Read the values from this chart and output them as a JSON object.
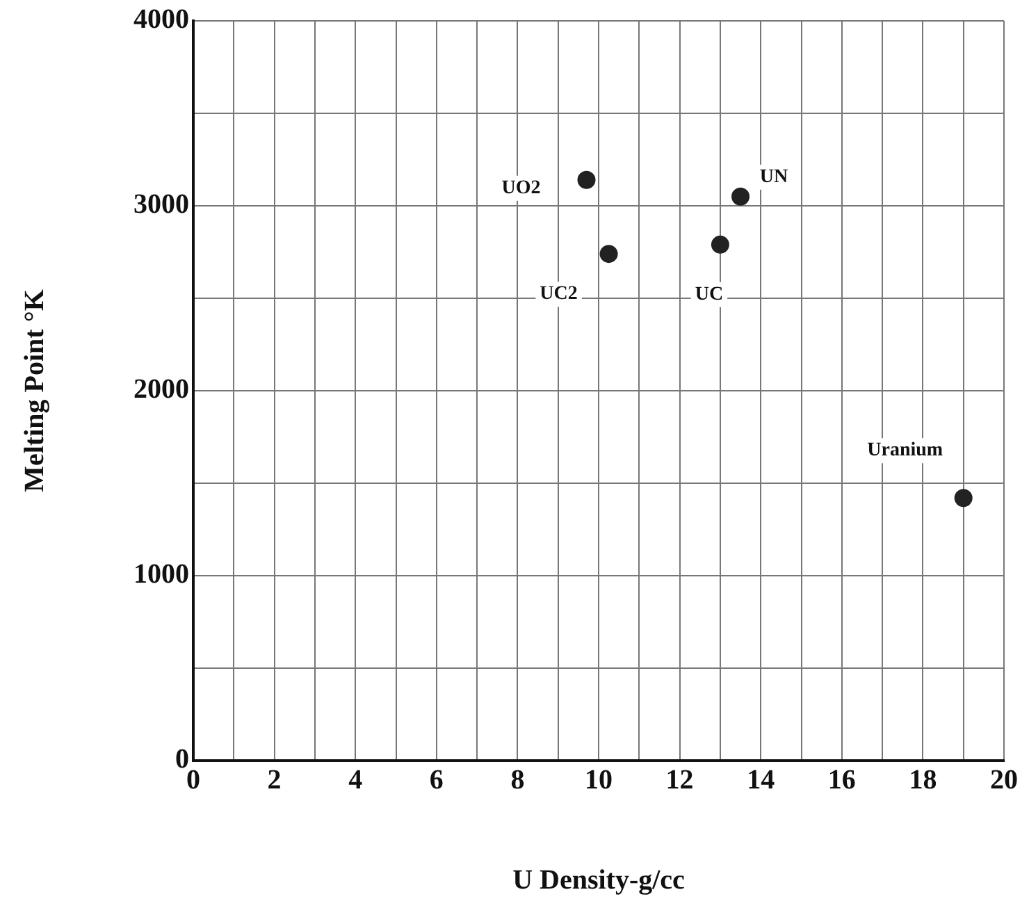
{
  "chart_data": {
    "type": "scatter",
    "xlabel": "U Density-g/cc",
    "ylabel": "Melting Point °K",
    "x": [
      9.7,
      10.25,
      13.0,
      13.5,
      19.0
    ],
    "series": [
      {
        "color": "#222222",
        "values": [
          3140,
          2740,
          2790,
          3050,
          1420
        ]
      }
    ],
    "xlim": [
      0,
      20
    ],
    "xticks": [
      0,
      {
        "value": 1,
        "label": null
      },
      2,
      {
        "value": 3,
        "label": null
      },
      4,
      {
        "value": 5,
        "label": null
      },
      6,
      {
        "value": 7,
        "label": null
      },
      8,
      {
        "value": 9,
        "label": null
      },
      10,
      {
        "value": 11,
        "label": null
      },
      12,
      {
        "value": 13,
        "label": null
      },
      14,
      {
        "value": 15,
        "label": null
      },
      16,
      {
        "value": 17,
        "label": null
      },
      18,
      {
        "value": 19,
        "label": null
      },
      20
    ],
    "ylim": [
      0,
      4000
    ],
    "yticks": [
      0,
      {
        "value": 500,
        "label": null
      },
      1000,
      {
        "value": 1500,
        "label": null
      },
      2000,
      {
        "value": 2500,
        "label": null
      },
      3000,
      {
        "value": 3500,
        "label": null
      },
      4000
    ],
    "grid": true,
    "marker": "circle",
    "legend": false,
    "annotations": [
      {
        "text": "UO2",
        "x": 9.7,
        "y": 3140
      },
      {
        "text": "UC2",
        "x": 10.25,
        "y": 2740
      },
      {
        "text": "UC",
        "x": 13.0,
        "y": 2790
      },
      {
        "text": "UN",
        "x": 13.5,
        "y": 3050
      },
      {
        "text": "Uranium",
        "x": 19.0,
        "y": 1420
      }
    ]
  }
}
